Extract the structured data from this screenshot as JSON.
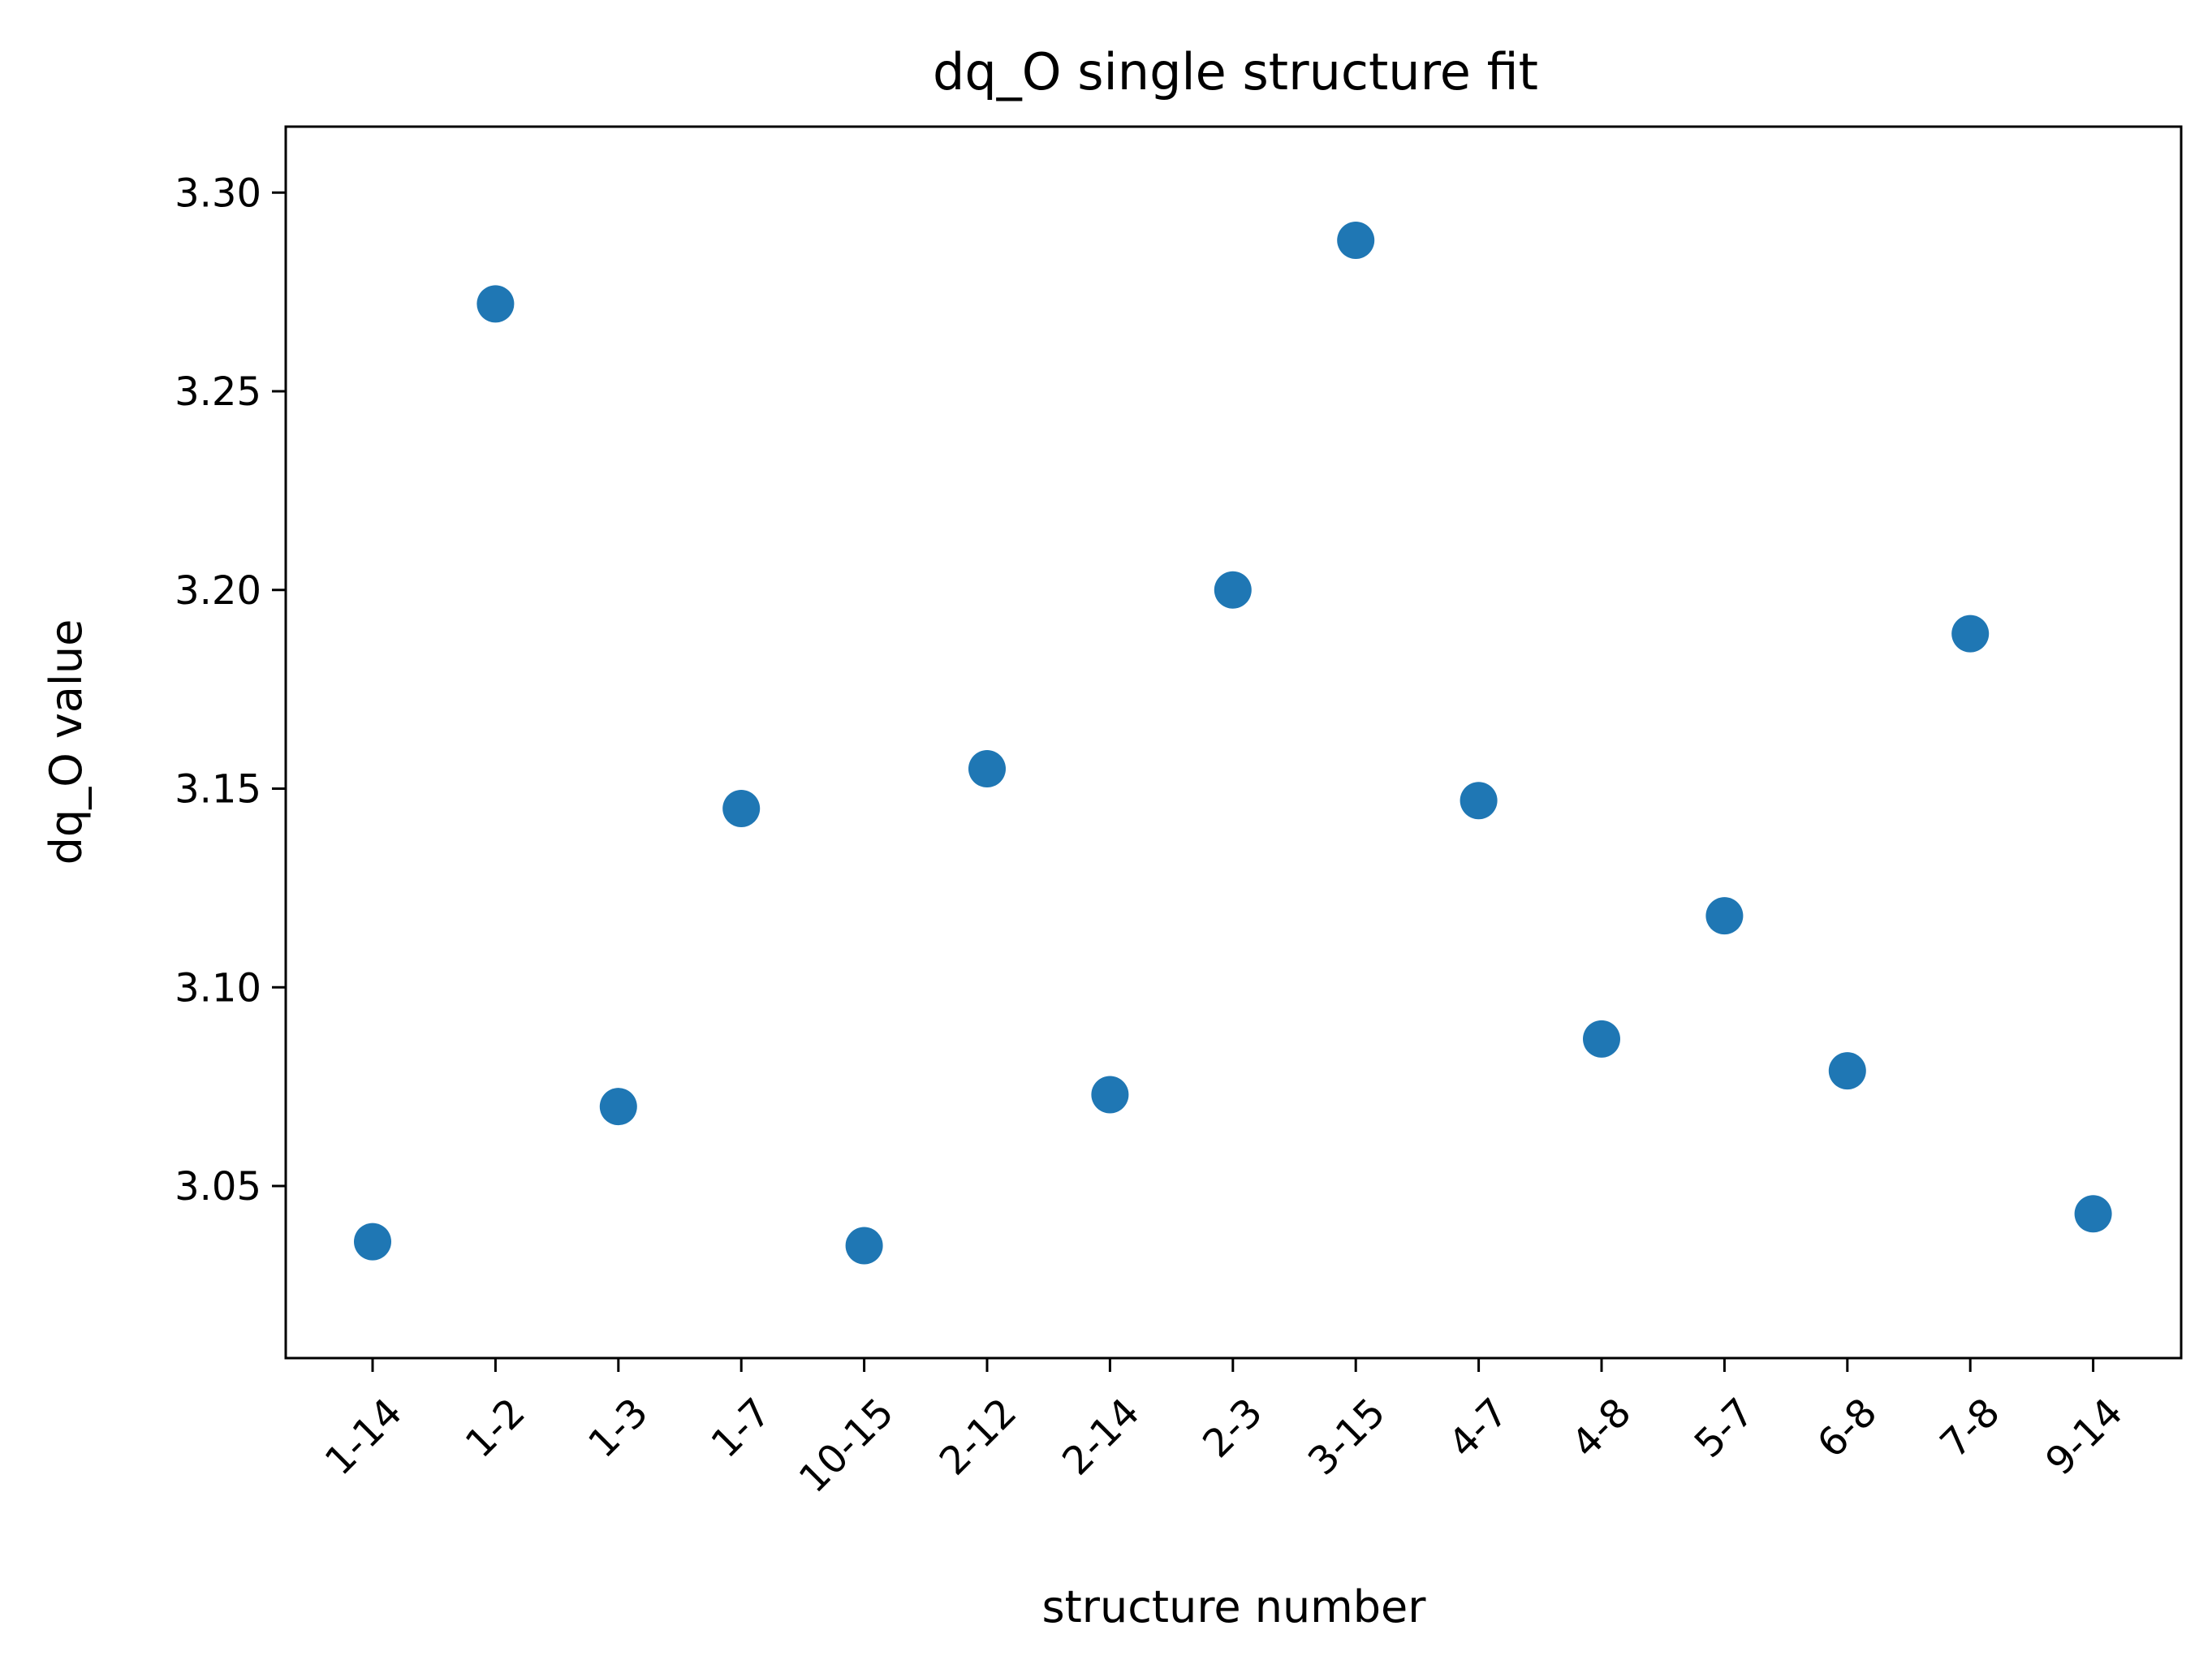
{
  "chart_data": {
    "type": "scatter",
    "title": "dq_O single structure fit",
    "xlabel": "structure number",
    "ylabel": "dq_O value",
    "categories": [
      "1-14",
      "1-2",
      "1-3",
      "1-7",
      "10-15",
      "2-12",
      "2-14",
      "2-3",
      "3-15",
      "4-7",
      "4-8",
      "5-7",
      "6-8",
      "7-8",
      "9-14"
    ],
    "values": [
      3.036,
      3.272,
      3.07,
      3.145,
      3.035,
      3.155,
      3.073,
      3.2,
      3.288,
      3.147,
      3.087,
      3.118,
      3.079,
      3.189,
      3.043
    ],
    "ylim": [
      3.0067,
      3.3166
    ],
    "yticks": [
      3.05,
      3.1,
      3.15,
      3.2,
      3.25,
      3.3
    ],
    "ytick_labels": [
      "3.05",
      "3.10",
      "3.15",
      "3.20",
      "3.25",
      "3.30"
    ],
    "xtick_rotation": 45,
    "grid": false,
    "marker_color": "#1f77b4"
  }
}
